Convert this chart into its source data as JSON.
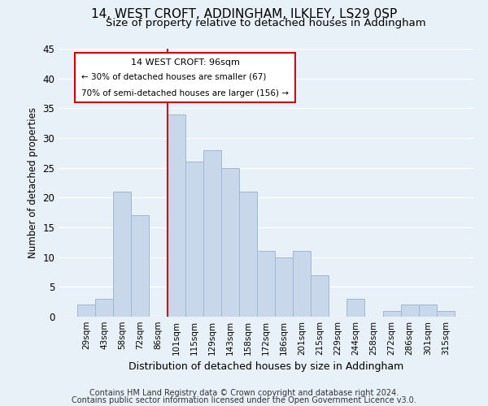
{
  "title": "14, WEST CROFT, ADDINGHAM, ILKLEY, LS29 0SP",
  "subtitle": "Size of property relative to detached houses in Addingham",
  "xlabel": "Distribution of detached houses by size in Addingham",
  "ylabel": "Number of detached properties",
  "bar_labels": [
    "29sqm",
    "43sqm",
    "58sqm",
    "72sqm",
    "86sqm",
    "101sqm",
    "115sqm",
    "129sqm",
    "143sqm",
    "158sqm",
    "172sqm",
    "186sqm",
    "201sqm",
    "215sqm",
    "229sqm",
    "244sqm",
    "258sqm",
    "272sqm",
    "286sqm",
    "301sqm",
    "315sqm"
  ],
  "bar_values": [
    2,
    3,
    21,
    17,
    0,
    34,
    26,
    28,
    25,
    21,
    11,
    10,
    11,
    7,
    0,
    3,
    0,
    1,
    2,
    2,
    1
  ],
  "bar_color": "#c8d8ea",
  "bar_edge_color": "#a0b8d0",
  "highlight_line_color": "#cc0000",
  "ylim": [
    0,
    45
  ],
  "yticks": [
    0,
    5,
    10,
    15,
    20,
    25,
    30,
    35,
    40,
    45
  ],
  "annotation_title": "14 WEST CROFT: 96sqm",
  "annotation_line1": "← 30% of detached houses are smaller (67)",
  "annotation_line2": "70% of semi-detached houses are larger (156) →",
  "annotation_box_color": "#ffffff",
  "annotation_box_edge": "#cc0000",
  "footer_line1": "Contains HM Land Registry data © Crown copyright and database right 2024.",
  "footer_line2": "Contains public sector information licensed under the Open Government Licence v3.0.",
  "background_color": "#e8f0f8",
  "grid_color": "#ffffff",
  "title_fontsize": 11,
  "subtitle_fontsize": 9.5,
  "footer_fontsize": 7
}
